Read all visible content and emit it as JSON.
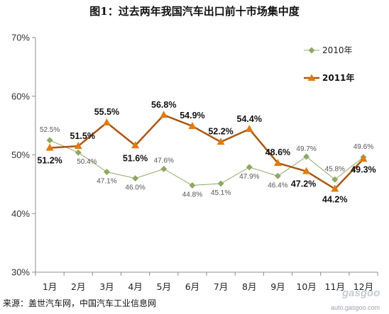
{
  "chart_data": {
    "type": "line",
    "title": "图1：过去两年我国汽车出口前十市场集中度",
    "categories": [
      "1月",
      "2月",
      "3月",
      "4月",
      "5月",
      "6月",
      "7月",
      "8月",
      "9月",
      "10月",
      "11月",
      "12月"
    ],
    "ylim": [
      30,
      70
    ],
    "yticks": [
      "30%",
      "40%",
      "50%",
      "60%",
      "70%"
    ],
    "ytick_values": [
      30,
      40,
      50,
      60,
      70
    ],
    "legend_position": "top-right",
    "grid": false,
    "series": [
      {
        "name": "2010年",
        "color": "#8fa863",
        "marker": "diamond",
        "values": [
          52.5,
          50.4,
          47.1,
          46.0,
          47.6,
          44.8,
          45.1,
          47.9,
          46.4,
          49.7,
          45.8,
          49.6
        ],
        "labels": [
          "52.5%",
          "50.4%",
          "47.1%",
          "46.0%",
          "47.6%",
          "44.8%",
          "45.1%",
          "47.9%",
          "46.4%",
          "49.7%",
          "45.8%",
          "49.6%"
        ]
      },
      {
        "name": "2011年",
        "color": "#a95712",
        "marker_color": "#e07b12",
        "marker": "triangle",
        "values": [
          51.2,
          51.5,
          55.5,
          51.6,
          56.8,
          54.9,
          52.2,
          54.4,
          48.6,
          47.2,
          44.2,
          49.3
        ],
        "labels": [
          "51.2%",
          "51.5%",
          "55.5%",
          "51.6%",
          "56.8%",
          "54.9%",
          "52.2%",
          "54.4%",
          "48.6%",
          "47.2%",
          "44.2%",
          "49.3%"
        ]
      }
    ]
  },
  "footer": {
    "source": "来源：盖世汽车网，中国汽车工业信息网",
    "watermark_url": "auto.gasgoo.com",
    "watermark_logo": "gasgoo"
  }
}
